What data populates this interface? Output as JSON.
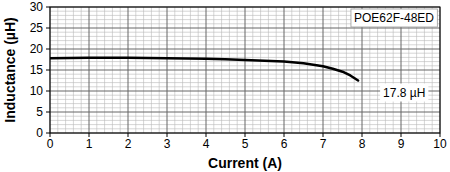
{
  "chart_data": {
    "type": "line",
    "x_label": "Current (A)",
    "y_label": "Inductance (µH)",
    "annotations": [
      "17.8 µH"
    ],
    "x": [
      0,
      0.5,
      1,
      1.5,
      2,
      2.5,
      3,
      3.5,
      4,
      4.5,
      5,
      5.5,
      6,
      6.5,
      7,
      7.25,
      7.5,
      7.7,
      7.9
    ],
    "series": [
      {
        "name": "POE62F-48ED",
        "color": "#000000",
        "values": [
          17.8,
          17.85,
          17.9,
          17.9,
          17.9,
          17.85,
          17.8,
          17.75,
          17.7,
          17.55,
          17.4,
          17.2,
          17.0,
          16.6,
          15.9,
          15.3,
          14.6,
          13.7,
          12.5
        ]
      }
    ],
    "xlim": [
      0,
      10
    ],
    "ylim": [
      0,
      30
    ],
    "xticks": [
      0,
      1,
      2,
      3,
      4,
      5,
      6,
      7,
      8,
      9,
      10
    ],
    "yticks": [
      0,
      5,
      10,
      15,
      20,
      25,
      30
    ],
    "grid": true,
    "legend": "upper right"
  }
}
